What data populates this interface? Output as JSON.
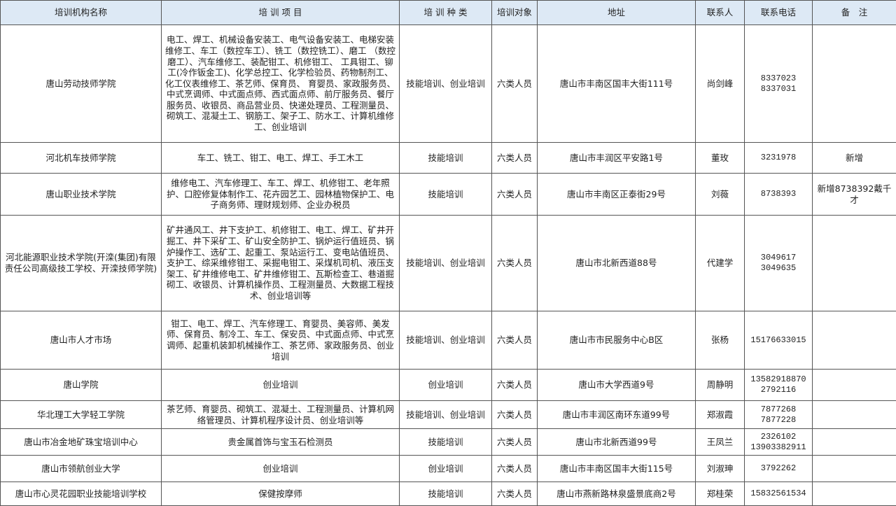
{
  "header": [
    "培训机构名称",
    "培 训 项 目",
    "培 训 种 类",
    "培训对象",
    "地址",
    "联系人",
    "联系电话",
    "备　注"
  ],
  "rows": [
    {
      "name": "唐山劳动技师学院",
      "projects": "电工、焊工、机械设备安装工、电气设备安装工、电梯安装维修工、车工（数控车工）、铣工（数控铣工）、磨工 （数控磨工）、汽车维修工、装配钳工、机修钳工、 工具钳工、铆工(冷作钣金工)、化学总控工、化学检验员、药物制剂工、化工仪表维修工、茶艺师、保育员、 育婴员、家政服务员、中式烹调师、中式面点师、西式面点师、前厅服务员、餐厅服务员、收银员、商品营业员、快递处理员、工程测量员、砌筑工、混凝土工、钢筋工、架子工、防水工、计算机维修工、创业培训",
      "type": "技能培训、创业培训",
      "target": "六类人员",
      "address": "唐山市丰南区国丰大街111号",
      "contact": "尚剑峰",
      "phone": [
        "8337023",
        "8337031"
      ],
      "note": ""
    },
    {
      "name": "河北机车技师学院",
      "projects": "车工、铣工、钳工、电工、焊工、手工木工",
      "type": "技能培训",
      "target": "六类人员",
      "address": "唐山市丰润区平安路1号",
      "contact": "董玫",
      "phone": [
        "3231978"
      ],
      "note": "新增"
    },
    {
      "name": "唐山职业技术学院",
      "projects": "维修电工、汽车修理工、车工、焊工、机修钳工、老年照护、口腔修复体制作工、花卉园艺工、园林植物保护工、电子商务师、理财规划师、企业办税员",
      "type": "技能培训",
      "target": "六类人员",
      "address": "唐山市丰南区正泰街29号",
      "contact": "刘薇",
      "phone": [
        "8738393"
      ],
      "note": "新增8738392戴千才"
    },
    {
      "name": "河北能源职业技术学院(开滦(集团)有限责任公司高级技工学校、开滦技师学院)",
      "projects": "矿井通风工、井下支护工、机修钳工、电工、焊工、矿井开掘工、井下采矿工、矿山安全防护工、锅炉运行值班员、锅炉操作工、选矿工、起重工、泵站运行工、变电站值班员、支护工、综采维修钳工、采掘电钳工、采煤机司机、液压支架工、矿井维修电工、矿井维修钳工、瓦斯检查工、巷道掘砌工、收银员、计算机操作员、工程测量员、大数据工程技术、创业培训等",
      "type": "技能培训、创业培训",
      "target": "六类人员",
      "address": "唐山市北新西道88号",
      "contact": "代建学",
      "phone": [
        "3049617",
        "3049635"
      ],
      "note": ""
    },
    {
      "name": "唐山市人才市场",
      "projects": "钳工、电工、焊工、汽车修理工、育婴员、美容师、美发师、保育员、制冷工、车工、保安员、中式面点师、中式烹调师、起重机装卸机械操作工、茶艺师、家政服务员、创业培训",
      "type": "技能培训、创业培训",
      "target": "六类人员",
      "address": "唐山市市民服务中心B区",
      "contact": "张杨",
      "phone": [
        "15176633015"
      ],
      "note": ""
    },
    {
      "name": "唐山学院",
      "projects": "创业培训",
      "type": "创业培训",
      "target": "六类人员",
      "address": "唐山市大学西道9号",
      "contact": "周静明",
      "phone": [
        "13582918870",
        "2792116"
      ],
      "note": ""
    },
    {
      "name": "华北理工大学轻工学院",
      "projects": "茶艺师、育婴员、砌筑工、混凝土、工程测量员、计算机网络管理员、计算机程序设计员、创业培训等",
      "type": "技能培训、创业培训",
      "target": "六类人员",
      "address": "唐山市丰润区南环东道99号",
      "contact": "郑淑霞",
      "phone": [
        "7877268",
        "7877228"
      ],
      "note": ""
    },
    {
      "name": "唐山市冶金地矿珠宝培训中心",
      "projects": "贵金属首饰与宝玉石检测员",
      "type": "技能培训",
      "target": "六类人员",
      "address": "唐山市北新西道99号",
      "contact": "王凤兰",
      "phone": [
        "2326102",
        "13903382911"
      ],
      "note": ""
    },
    {
      "name": "唐山市领航创业大学",
      "projects": "创业培训",
      "type": "创业培训",
      "target": "六类人员",
      "address": "唐山市丰南区国丰大街115号",
      "contact": "刘淑珅",
      "phone": [
        "3792262"
      ],
      "note": ""
    },
    {
      "name": "唐山市心灵花园职业技能培训学校",
      "projects": "保健按摩师",
      "type": "技能培训",
      "target": "六类人员",
      "address": "唐山市燕新路林泉盛景底商2号",
      "contact": "郑桂荣",
      "phone": [
        "15832561534"
      ],
      "note": ""
    }
  ]
}
